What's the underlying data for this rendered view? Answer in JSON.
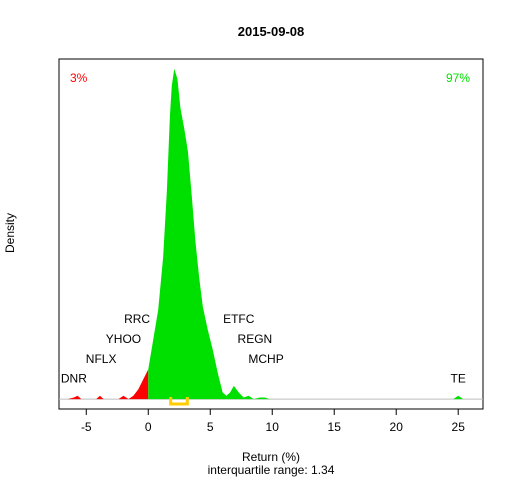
{
  "chart_data": {
    "type": "area",
    "title": "2015-09-08",
    "xlabel": "Return (%)",
    "ylabel": "Density",
    "subtitle": "interquartile range: 1.34",
    "xlim": [
      -7.2,
      27.0
    ],
    "ylim": [
      -0.03,
      1.03
    ],
    "x_ticks": [
      -5,
      0,
      5,
      10,
      15,
      20,
      25
    ],
    "threshold": 0,
    "negative_pct": "3%",
    "positive_pct": "97%",
    "colors": {
      "negative": "#ff0000",
      "positive": "#00e000",
      "iqr": "#ffcc00",
      "baseline": "#bebebe"
    },
    "density": [
      [
        -6.5,
        0.0
      ],
      [
        -6.0,
        0.005
      ],
      [
        -5.7,
        0.01
      ],
      [
        -5.4,
        0.0
      ],
      [
        -4.2,
        0.0
      ],
      [
        -3.9,
        0.01
      ],
      [
        -3.6,
        0.0
      ],
      [
        -2.4,
        0.0
      ],
      [
        -2.0,
        0.01
      ],
      [
        -1.6,
        0.0
      ],
      [
        -1.2,
        0.01
      ],
      [
        -0.8,
        0.03
      ],
      [
        -0.4,
        0.06
      ],
      [
        0.0,
        0.09
      ],
      [
        0.4,
        0.18
      ],
      [
        0.8,
        0.27
      ],
      [
        1.2,
        0.43
      ],
      [
        1.5,
        0.63
      ],
      [
        1.75,
        0.86
      ],
      [
        1.9,
        0.95
      ],
      [
        2.1,
        1.0
      ],
      [
        2.35,
        0.97
      ],
      [
        2.6,
        0.88
      ],
      [
        2.9,
        0.82
      ],
      [
        3.2,
        0.75
      ],
      [
        3.5,
        0.62
      ],
      [
        3.8,
        0.48
      ],
      [
        4.1,
        0.37
      ],
      [
        4.4,
        0.28
      ],
      [
        4.8,
        0.21
      ],
      [
        5.2,
        0.15
      ],
      [
        5.6,
        0.08
      ],
      [
        6.0,
        0.02
      ],
      [
        6.3,
        0.01
      ],
      [
        6.6,
        0.02
      ],
      [
        6.9,
        0.04
      ],
      [
        7.3,
        0.02
      ],
      [
        7.7,
        0.005
      ],
      [
        8.1,
        0.01
      ],
      [
        8.5,
        0.0
      ],
      [
        9.0,
        0.005
      ],
      [
        9.4,
        0.005
      ],
      [
        9.8,
        0.0
      ],
      [
        24.6,
        0.0
      ],
      [
        25.0,
        0.01
      ],
      [
        25.4,
        0.0
      ]
    ],
    "iqr": [
      1.81,
      3.15
    ],
    "annotations": [
      {
        "text": "DNR",
        "x": -6.0,
        "y": 0.05
      },
      {
        "text": "NFLX",
        "x": -3.8,
        "y": 0.11
      },
      {
        "text": "YHOO",
        "x": -2.0,
        "y": 0.17
      },
      {
        "text": "RRC",
        "x": -0.9,
        "y": 0.23
      },
      {
        "text": "ETFC",
        "x": 7.3,
        "y": 0.23
      },
      {
        "text": "REGN",
        "x": 8.6,
        "y": 0.17
      },
      {
        "text": "MCHP",
        "x": 9.5,
        "y": 0.11
      },
      {
        "text": "TE",
        "x": 25.0,
        "y": 0.05
      }
    ]
  }
}
